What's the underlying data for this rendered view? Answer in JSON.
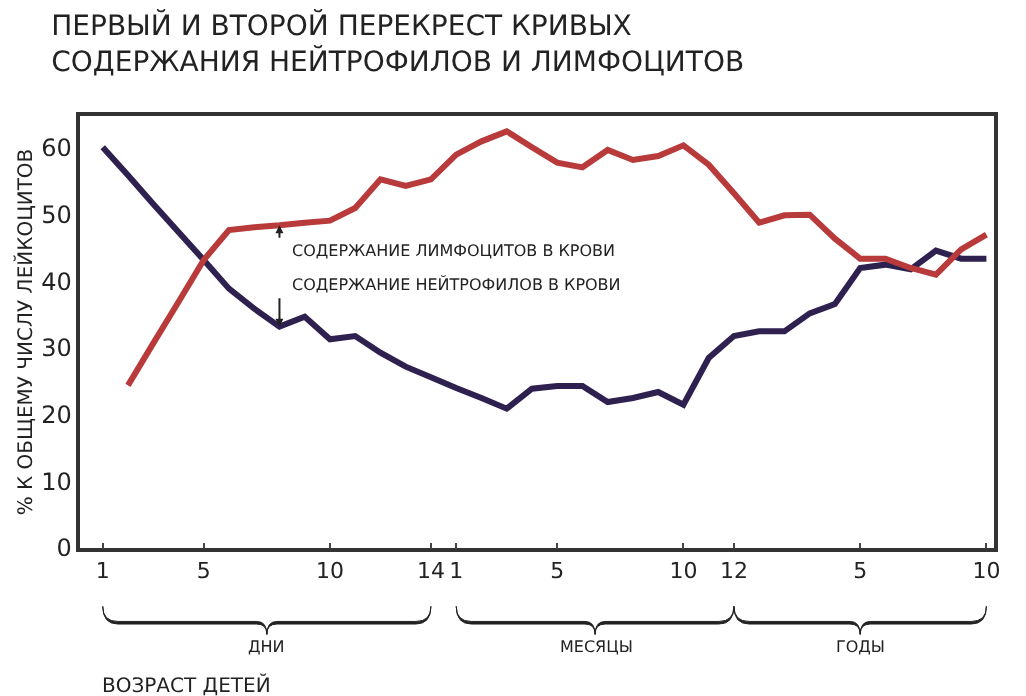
{
  "chart_data": {
    "type": "line",
    "title": "ПЕРВЫЙ И ВТОРОЙ ПЕРЕКРЕСТ КРИВЫХ\nСОДЕРЖАНИЯ НЕЙТРОФИЛОВ И ЛИМФОЦИТОВ",
    "xlabel": "ВОЗРАСТ ДЕТЕЙ",
    "ylabel": "% К ОБЩЕМУ ЧИСЛУ ЛЕЙКОЦИТОВ",
    "categories": [
      "1",
      null,
      null,
      null,
      "5",
      null,
      null,
      null,
      null,
      "10",
      null,
      null,
      null,
      "14",
      "1",
      null,
      null,
      null,
      "5",
      null,
      null,
      null,
      null,
      "10",
      null,
      "12",
      null,
      null,
      null,
      null,
      "5",
      null,
      null,
      null,
      null,
      "10"
    ],
    "ylim": [
      0,
      64.8
    ],
    "yticks": [
      0,
      10,
      20,
      30,
      40,
      50,
      60
    ],
    "legend": false,
    "marker": "none",
    "line_style": "solid",
    "series": [
      {
        "color": "#2e2150",
        "values": [
          60.1,
          55.9,
          51.6,
          47.4,
          43.2,
          38.9,
          35.9,
          33.2,
          34.7,
          31.3,
          31.8,
          29.3,
          27.2,
          25.6,
          24.0,
          22.5,
          20.9,
          23.9,
          24.3,
          24.3,
          21.9,
          22.5,
          23.4,
          21.5,
          28.5,
          31.8,
          32.5,
          32.5,
          35.2,
          36.6,
          42.0,
          42.5,
          41.8,
          44.6,
          43.4,
          43.4
        ]
      },
      {
        "color": "#b83a3a",
        "values": [
          null,
          24.4,
          30.7,
          36.9,
          43.2,
          47.7,
          48.1,
          48.4,
          48.8,
          49.1,
          51.0,
          55.3,
          54.3,
          55.3,
          59.0,
          61.0,
          62.5,
          60.1,
          57.8,
          57.1,
          59.7,
          58.2,
          58.8,
          60.4,
          57.5,
          53.2,
          48.8,
          49.9,
          50.0,
          46.4,
          43.4,
          43.4,
          42.0,
          41.0,
          44.8,
          47.0
        ]
      }
    ],
    "annotations": [
      "СОДЕРЖАНИЕ ЛИМФОЦИТОВ В КРОВИ",
      "СОДЕРЖАНИЕ НЕЙТРОФИЛОВ В КРОВИ",
      "ДНИ",
      "МЕСЯЦЫ",
      "ГОДЫ"
    ]
  }
}
